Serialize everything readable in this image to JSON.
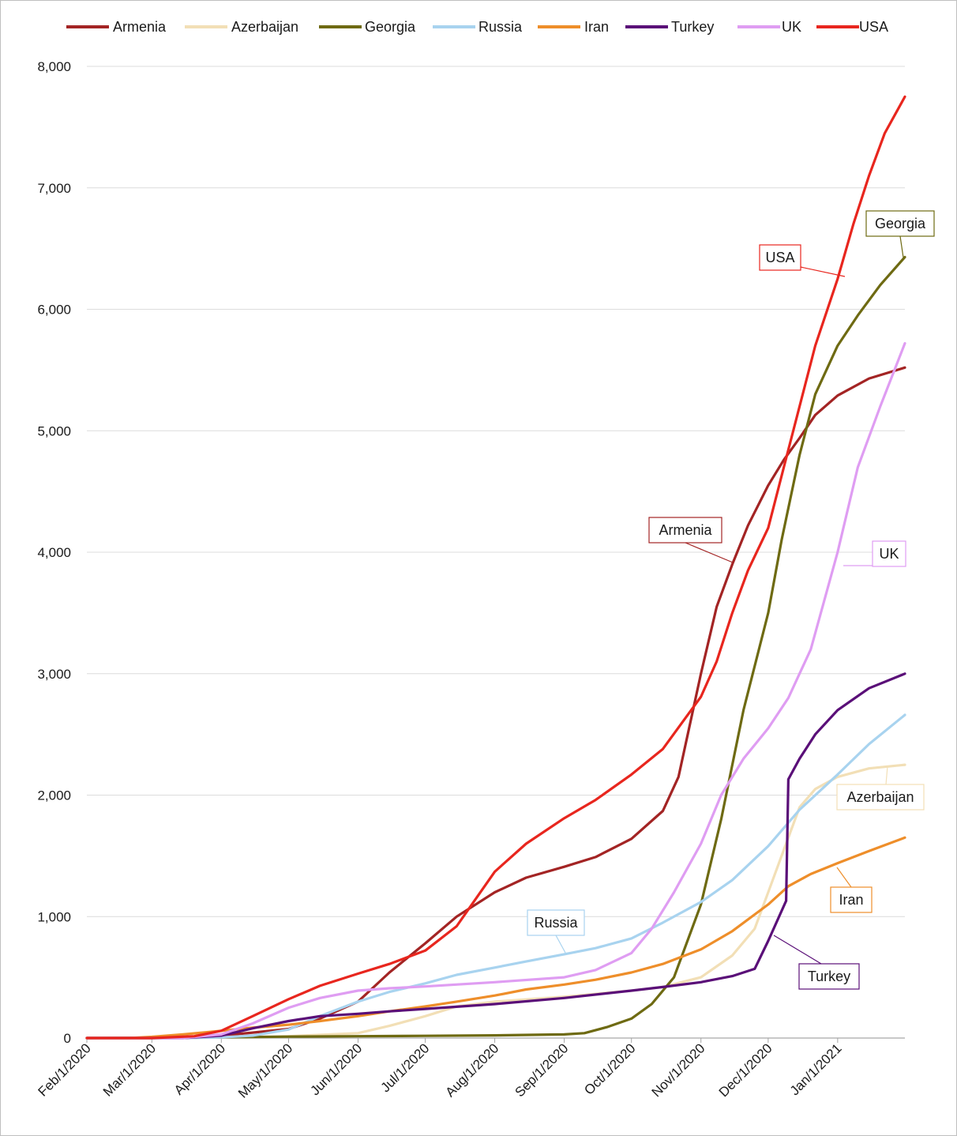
{
  "chart_data": {
    "type": "line",
    "title": "",
    "xlabel": "",
    "ylabel": "",
    "xlim": [
      "2020-02-01",
      "2021-01-31"
    ],
    "ylim": [
      0,
      8000
    ],
    "x_ticks": [
      "Feb/1/2020",
      "Mar/1/2020",
      "Apr/1/2020",
      "May/1/2020",
      "Jun/1/2020",
      "Jul/1/2020",
      "Aug/1/2020",
      "Sep/1/2020",
      "Oct/1/2020",
      "Nov/1/2020",
      "Dec/1/2020",
      "Jan/1/2021"
    ],
    "y_ticks": [
      "0",
      "1,000",
      "2,000",
      "3,000",
      "4,000",
      "5,000",
      "6,000",
      "7,000",
      "8,000"
    ],
    "grid": "horizontal",
    "legend_position": "top",
    "series": [
      {
        "name": "Armenia",
        "color": "#a32424",
        "callout": "Armenia",
        "points": [
          [
            "2020-02-01",
            0
          ],
          [
            "2020-03-01",
            0
          ],
          [
            "2020-03-15",
            5
          ],
          [
            "2020-04-01",
            20
          ],
          [
            "2020-04-15",
            45
          ],
          [
            "2020-05-01",
            75
          ],
          [
            "2020-05-15",
            160
          ],
          [
            "2020-06-01",
            300
          ],
          [
            "2020-06-15",
            540
          ],
          [
            "2020-07-01",
            780
          ],
          [
            "2020-07-15",
            1000
          ],
          [
            "2020-08-01",
            1200
          ],
          [
            "2020-08-15",
            1320
          ],
          [
            "2020-09-01",
            1410
          ],
          [
            "2020-09-15",
            1490
          ],
          [
            "2020-10-01",
            1640
          ],
          [
            "2020-10-15",
            1870
          ],
          [
            "2020-10-22",
            2150
          ],
          [
            "2020-11-01",
            3000
          ],
          [
            "2020-11-08",
            3550
          ],
          [
            "2020-11-15",
            3900
          ],
          [
            "2020-11-22",
            4220
          ],
          [
            "2020-12-01",
            4550
          ],
          [
            "2020-12-08",
            4760
          ],
          [
            "2020-12-15",
            4940
          ],
          [
            "2020-12-22",
            5130
          ],
          [
            "2021-01-01",
            5290
          ],
          [
            "2021-01-15",
            5430
          ],
          [
            "2021-01-31",
            5520
          ]
        ]
      },
      {
        "name": "Azerbaijan",
        "color": "#f2dfb6",
        "callout": "Azerbaijan",
        "points": [
          [
            "2020-02-01",
            0
          ],
          [
            "2020-03-01",
            0
          ],
          [
            "2020-04-01",
            5
          ],
          [
            "2020-05-01",
            15
          ],
          [
            "2020-06-01",
            40
          ],
          [
            "2020-06-15",
            100
          ],
          [
            "2020-07-01",
            180
          ],
          [
            "2020-07-15",
            260
          ],
          [
            "2020-08-01",
            300
          ],
          [
            "2020-09-01",
            340
          ],
          [
            "2020-10-01",
            390
          ],
          [
            "2020-10-15",
            420
          ],
          [
            "2020-11-01",
            500
          ],
          [
            "2020-11-15",
            680
          ],
          [
            "2020-11-25",
            900
          ],
          [
            "2020-12-01",
            1200
          ],
          [
            "2020-12-08",
            1550
          ],
          [
            "2020-12-15",
            1900
          ],
          [
            "2020-12-22",
            2050
          ],
          [
            "2021-01-01",
            2150
          ],
          [
            "2021-01-15",
            2220
          ],
          [
            "2021-01-31",
            2250
          ]
        ]
      },
      {
        "name": "Georgia",
        "color": "#6e6a12",
        "callout": "Georgia",
        "points": [
          [
            "2020-02-01",
            0
          ],
          [
            "2020-04-01",
            5
          ],
          [
            "2020-05-01",
            12
          ],
          [
            "2020-06-01",
            15
          ],
          [
            "2020-07-01",
            18
          ],
          [
            "2020-08-01",
            22
          ],
          [
            "2020-09-01",
            30
          ],
          [
            "2020-09-10",
            40
          ],
          [
            "2020-09-20",
            90
          ],
          [
            "2020-10-01",
            160
          ],
          [
            "2020-10-10",
            280
          ],
          [
            "2020-10-20",
            500
          ],
          [
            "2020-11-01",
            1100
          ],
          [
            "2020-11-10",
            1800
          ],
          [
            "2020-11-20",
            2700
          ],
          [
            "2020-12-01",
            3500
          ],
          [
            "2020-12-07",
            4100
          ],
          [
            "2020-12-15",
            4800
          ],
          [
            "2020-12-22",
            5300
          ],
          [
            "2021-01-01",
            5700
          ],
          [
            "2021-01-10",
            5950
          ],
          [
            "2021-01-20",
            6200
          ],
          [
            "2021-01-31",
            6430
          ]
        ]
      },
      {
        "name": "Russia",
        "color": "#a8d3ef",
        "callout": "Russia",
        "points": [
          [
            "2020-02-01",
            0
          ],
          [
            "2020-03-15",
            0
          ],
          [
            "2020-04-01",
            5
          ],
          [
            "2020-04-15",
            20
          ],
          [
            "2020-05-01",
            70
          ],
          [
            "2020-05-15",
            180
          ],
          [
            "2020-06-01",
            300
          ],
          [
            "2020-06-15",
            380
          ],
          [
            "2020-07-01",
            450
          ],
          [
            "2020-07-15",
            520
          ],
          [
            "2020-08-01",
            580
          ],
          [
            "2020-08-15",
            630
          ],
          [
            "2020-09-01",
            690
          ],
          [
            "2020-09-15",
            740
          ],
          [
            "2020-10-01",
            820
          ],
          [
            "2020-10-15",
            950
          ],
          [
            "2020-11-01",
            1120
          ],
          [
            "2020-11-15",
            1300
          ],
          [
            "2020-12-01",
            1580
          ],
          [
            "2020-12-15",
            1880
          ],
          [
            "2021-01-01",
            2170
          ],
          [
            "2021-01-15",
            2420
          ],
          [
            "2021-01-31",
            2660
          ]
        ]
      },
      {
        "name": "Iran",
        "color": "#ee8e2a",
        "callout": "Iran",
        "points": [
          [
            "2020-02-01",
            0
          ],
          [
            "2020-02-20",
            0
          ],
          [
            "2020-03-01",
            10
          ],
          [
            "2020-03-15",
            30
          ],
          [
            "2020-04-01",
            60
          ],
          [
            "2020-04-15",
            85
          ],
          [
            "2020-05-01",
            110
          ],
          [
            "2020-05-15",
            140
          ],
          [
            "2020-06-01",
            180
          ],
          [
            "2020-06-15",
            220
          ],
          [
            "2020-07-01",
            260
          ],
          [
            "2020-07-15",
            300
          ],
          [
            "2020-08-01",
            350
          ],
          [
            "2020-08-15",
            400
          ],
          [
            "2020-09-01",
            440
          ],
          [
            "2020-09-15",
            480
          ],
          [
            "2020-10-01",
            540
          ],
          [
            "2020-10-15",
            610
          ],
          [
            "2020-11-01",
            730
          ],
          [
            "2020-11-15",
            880
          ],
          [
            "2020-12-01",
            1100
          ],
          [
            "2020-12-10",
            1250
          ],
          [
            "2020-12-20",
            1350
          ],
          [
            "2021-01-01",
            1440
          ],
          [
            "2021-01-15",
            1540
          ],
          [
            "2021-01-31",
            1650
          ]
        ]
      },
      {
        "name": "Turkey",
        "color": "#5a0f78",
        "callout": "Turkey",
        "points": [
          [
            "2020-02-01",
            0
          ],
          [
            "2020-03-15",
            0
          ],
          [
            "2020-04-01",
            20
          ],
          [
            "2020-04-15",
            80
          ],
          [
            "2020-05-01",
            140
          ],
          [
            "2020-05-15",
            180
          ],
          [
            "2020-06-01",
            200
          ],
          [
            "2020-06-15",
            220
          ],
          [
            "2020-07-01",
            240
          ],
          [
            "2020-08-01",
            280
          ],
          [
            "2020-09-01",
            330
          ],
          [
            "2020-10-01",
            390
          ],
          [
            "2020-10-15",
            420
          ],
          [
            "2020-11-01",
            460
          ],
          [
            "2020-11-15",
            510
          ],
          [
            "2020-11-25",
            570
          ],
          [
            "2020-12-01",
            800
          ],
          [
            "2020-12-09",
            1130
          ],
          [
            "2020-12-10",
            2130
          ],
          [
            "2020-12-15",
            2300
          ],
          [
            "2020-12-22",
            2500
          ],
          [
            "2021-01-01",
            2700
          ],
          [
            "2021-01-15",
            2880
          ],
          [
            "2021-01-31",
            3000
          ]
        ]
      },
      {
        "name": "UK",
        "color": "#df9df2",
        "callout": "UK",
        "points": [
          [
            "2020-02-01",
            0
          ],
          [
            "2020-03-15",
            0
          ],
          [
            "2020-04-01",
            30
          ],
          [
            "2020-04-15",
            120
          ],
          [
            "2020-05-01",
            250
          ],
          [
            "2020-05-15",
            330
          ],
          [
            "2020-06-01",
            390
          ],
          [
            "2020-06-15",
            410
          ],
          [
            "2020-07-01",
            425
          ],
          [
            "2020-08-01",
            460
          ],
          [
            "2020-09-01",
            500
          ],
          [
            "2020-09-15",
            560
          ],
          [
            "2020-10-01",
            700
          ],
          [
            "2020-10-10",
            900
          ],
          [
            "2020-10-20",
            1200
          ],
          [
            "2020-11-01",
            1600
          ],
          [
            "2020-11-10",
            2000
          ],
          [
            "2020-11-20",
            2300
          ],
          [
            "2020-12-01",
            2550
          ],
          [
            "2020-12-10",
            2800
          ],
          [
            "2020-12-20",
            3200
          ],
          [
            "2021-01-01",
            4000
          ],
          [
            "2021-01-10",
            4700
          ],
          [
            "2021-01-20",
            5200
          ],
          [
            "2021-01-31",
            5720
          ]
        ]
      },
      {
        "name": "USA",
        "color": "#e8261e",
        "callout": "USA",
        "points": [
          [
            "2020-02-01",
            0
          ],
          [
            "2020-03-01",
            0
          ],
          [
            "2020-03-20",
            15
          ],
          [
            "2020-04-01",
            60
          ],
          [
            "2020-04-15",
            180
          ],
          [
            "2020-05-01",
            320
          ],
          [
            "2020-05-15",
            430
          ],
          [
            "2020-06-01",
            530
          ],
          [
            "2020-06-15",
            610
          ],
          [
            "2020-07-01",
            720
          ],
          [
            "2020-07-15",
            920
          ],
          [
            "2020-08-01",
            1370
          ],
          [
            "2020-08-15",
            1600
          ],
          [
            "2020-09-01",
            1810
          ],
          [
            "2020-09-15",
            1960
          ],
          [
            "2020-10-01",
            2170
          ],
          [
            "2020-10-15",
            2380
          ],
          [
            "2020-11-01",
            2810
          ],
          [
            "2020-11-08",
            3100
          ],
          [
            "2020-11-15",
            3500
          ],
          [
            "2020-11-22",
            3850
          ],
          [
            "2020-12-01",
            4200
          ],
          [
            "2020-12-08",
            4700
          ],
          [
            "2020-12-15",
            5200
          ],
          [
            "2020-12-22",
            5700
          ],
          [
            "2021-01-01",
            6250
          ],
          [
            "2021-01-08",
            6700
          ],
          [
            "2021-01-15",
            7100
          ],
          [
            "2021-01-22",
            7450
          ],
          [
            "2021-01-31",
            7750
          ]
        ]
      }
    ]
  }
}
